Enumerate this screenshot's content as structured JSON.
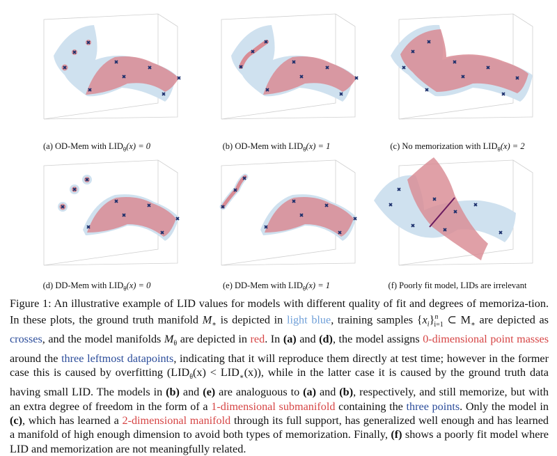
{
  "colors": {
    "ground_truth_manifold": "#cfe1ef",
    "model_manifold": "#d98b94",
    "training_sample": "#1a2e6b",
    "caption_light_blue": "#6f9fd8",
    "caption_blue": "#2b4c9a",
    "caption_red": "#d64545"
  },
  "panels": [
    {
      "id": "a",
      "label": "(a) OD-Mem with LID",
      "sub": "θ",
      "tail": "(x) = 0"
    },
    {
      "id": "b",
      "label": "(b) OD-Mem with LID",
      "sub": "θ",
      "tail": "(x) = 1"
    },
    {
      "id": "c",
      "label": "(c) No memorization with LID",
      "sub": "θ",
      "tail": "(x) = 2"
    },
    {
      "id": "d",
      "label": "(d) DD-Mem with LID",
      "sub": "θ",
      "tail": "(x) = 0"
    },
    {
      "id": "e",
      "label": "(e) DD-Mem with LID",
      "sub": "θ",
      "tail": "(x) = 1"
    },
    {
      "id": "f",
      "label": "(f) Poorly fit model, LIDs are irrelevant",
      "sub": "",
      "tail": ""
    }
  ],
  "caption": {
    "s01": "Figure 1: An illustrative example of LID values for models with different quality of fit and degrees of memoriza-tion. In these plots, the ground truth manifold ",
    "m_star": "M",
    "s02": " is depicted in ",
    "light_blue": "light blue",
    "s03": ", training samples {",
    "xi": "x",
    "s04": "}",
    "s05": " ⊂ M",
    "s06": " are depicted as ",
    "crosses": "crosses",
    "s07": ", and the model manifolds ",
    "m_theta": "M",
    "s08": " are depicted in ",
    "red": "red",
    "s09": ". In ",
    "a_b": "(a)",
    "s10": " and ",
    "d_b": "(d)",
    "s11": ", the model assigns ",
    "point_masses": "0-dimensional point masses",
    "s12": " around the ",
    "three_leftmost": "three leftmost datapoints",
    "s13": ", indicating that it will reproduce them directly at test time; however in the former case this is caused by overfitting (LID",
    "s14": "(x) < LID",
    "s15": "(x)), while in the latter case it is caused by the ground truth data having small LID. The models in ",
    "b_b": "(b)",
    "s16": " and ",
    "e_b": "(e)",
    "s17": " are analoguous to ",
    "a_b2": "(a)",
    "s18": " and ",
    "b_b2": "(b)",
    "s19": ", respectively, and still memorize, but with an extra degree of freedom in the form of a ",
    "one_dim": "1-dimensional submanifold",
    "s20": " containing the ",
    "three_points": "three points",
    "s21": ". Only the model in ",
    "c_b": "(c)",
    "s22": ", which has learned a ",
    "two_dim": "2-dimensional manifold",
    "s23": " through its full support, has generalized well enough and has learned a manifold of high enough dimension to avoid both types of memorization. Finally, ",
    "f_b": "(f)",
    "s24": " shows a poorly fit model where LID and memorization are not meaningfully related.",
    "sub_star": "∗",
    "sub_theta": "θ",
    "sub_i": "i",
    "sub_range": "i=1",
    "sup_n": "n"
  }
}
